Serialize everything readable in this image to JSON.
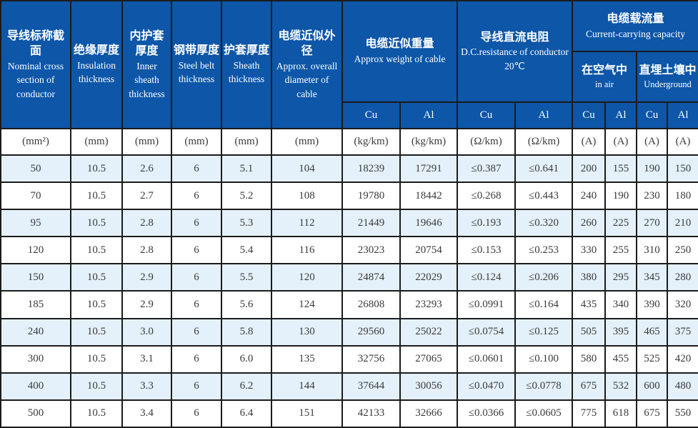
{
  "colors": {
    "header_bg": "#0d56a8",
    "header_text": "#ffffff",
    "row_alt_bg": "#e4f1fa",
    "row_bg": "#ffffff",
    "border": "#1b1b1b",
    "body_text": "#3a3a3a"
  },
  "table": {
    "headers": {
      "nominal": {
        "zh": "导线标称截面",
        "en": "Nominal cross section of conductor"
      },
      "insulation": {
        "zh": "绝缘厚度",
        "en": "Insulation thickness"
      },
      "inner_sheath": {
        "zh": "内护套厚度",
        "en": "Inner sheath thickness"
      },
      "steel_belt": {
        "zh": "钢带厚度",
        "en": "Steel belt thickness"
      },
      "sheath": {
        "zh": "护套厚度",
        "en": "Sheath thickness"
      },
      "diameter": {
        "zh": "电缆近似外径",
        "en": "Approx. overall diameter of cable"
      },
      "weight": {
        "zh": "电缆近似重量",
        "en": "Approx weight of cable"
      },
      "resistance": {
        "zh": "导线直流电阻",
        "en": "D.C.resistance of conductor 20℃"
      },
      "capacity": {
        "zh": "电缆载流量",
        "en": "Current-carrying capacity"
      },
      "in_air": {
        "zh": "在空气中",
        "en": "in air"
      },
      "underground": {
        "zh": "直埋土壤中",
        "en": "Underground"
      }
    },
    "materials": [
      "Cu",
      "Al",
      "Cu",
      "Al",
      "Cu",
      "Al",
      "Cu",
      "Al"
    ],
    "units": [
      "(mm²)",
      "(mm)",
      "(mm)",
      "(mm)",
      "(mm)",
      "(mm)",
      "(kg/km)",
      "(kg/km)",
      "(Ω/km)",
      "(Ω/km)",
      "(A)",
      "(A)",
      "(A)",
      "(A)"
    ],
    "rows": [
      [
        "50",
        "10.5",
        "2.6",
        "6",
        "5.1",
        "104",
        "18239",
        "17291",
        "≤0.387",
        "≤0.641",
        "200",
        "155",
        "190",
        "150"
      ],
      [
        "70",
        "10.5",
        "2.7",
        "6",
        "5.2",
        "108",
        "19780",
        "18442",
        "≤0.268",
        "≤0.443",
        "240",
        "190",
        "230",
        "180"
      ],
      [
        "95",
        "10.5",
        "2.8",
        "6",
        "5.3",
        "112",
        "21449",
        "19646",
        "≤0.193",
        "≤0.320",
        "260",
        "225",
        "270",
        "210"
      ],
      [
        "120",
        "10.5",
        "2.8",
        "6",
        "5.4",
        "116",
        "23023",
        "20754",
        "≤0.153",
        "≤0.253",
        "330",
        "255",
        "310",
        "250"
      ],
      [
        "150",
        "10.5",
        "2.9",
        "6",
        "5.5",
        "120",
        "24874",
        "22029",
        "≤0.124",
        "≤0.206",
        "380",
        "295",
        "345",
        "280"
      ],
      [
        "185",
        "10.5",
        "2.9",
        "6",
        "5.6",
        "124",
        "26808",
        "23293",
        "≤0.0991",
        "≤0.164",
        "435",
        "340",
        "390",
        "320"
      ],
      [
        "240",
        "10.5",
        "3.0",
        "6",
        "5.8",
        "130",
        "29560",
        "25022",
        "≤0.0754",
        "≤0.125",
        "505",
        "395",
        "465",
        "375"
      ],
      [
        "300",
        "10.5",
        "3.1",
        "6",
        "6.0",
        "135",
        "32756",
        "27065",
        "≤0.0601",
        "≤0.100",
        "580",
        "455",
        "525",
        "420"
      ],
      [
        "400",
        "10.5",
        "3.3",
        "6",
        "6.2",
        "144",
        "37644",
        "30056",
        "≤0.0470",
        "≤0.0778",
        "675",
        "532",
        "600",
        "480"
      ],
      [
        "500",
        "10.5",
        "3.4",
        "6",
        "6.4",
        "151",
        "42133",
        "32666",
        "≤0.0366",
        "≤0.0605",
        "775",
        "618",
        "675",
        "550"
      ]
    ]
  }
}
